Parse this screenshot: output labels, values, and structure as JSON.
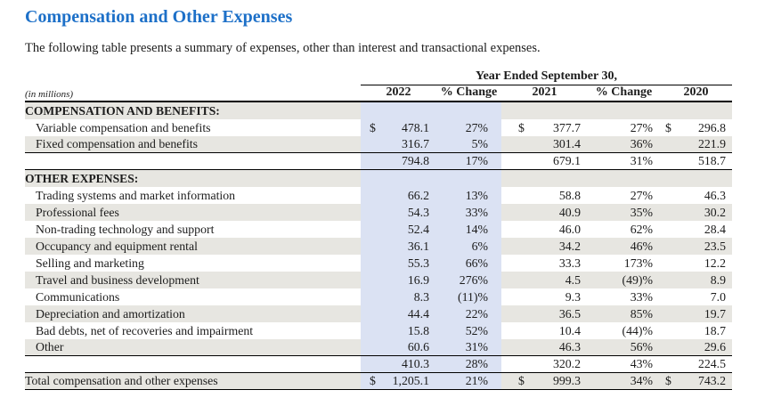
{
  "page": {
    "title": "Compensation and Other Expenses",
    "subtitle": "The following table presents a summary of expenses, other than interest and transactional expenses."
  },
  "table": {
    "group_header": "Year Ended September 30,",
    "unit_label": "(in millions)",
    "columns": [
      "2022",
      "% Change",
      "2021",
      "% Change",
      "2020"
    ],
    "currency_symbol": "$",
    "colors": {
      "title_accent": "#1d70c8",
      "column_highlight": "#dbe2f3",
      "row_stripe": "#e7e6e1"
    },
    "rows": [
      {
        "label": "COMPENSATION AND BENEFITS:",
        "style": "section",
        "stripe": true,
        "dollar": false,
        "rule_below": false,
        "values": [
          "",
          "",
          "",
          "",
          ""
        ]
      },
      {
        "label": "Variable compensation and benefits",
        "style": "item",
        "stripe": false,
        "dollar": true,
        "rule_below": false,
        "values": [
          "478.1",
          "27%",
          "377.7",
          "27%",
          "296.8"
        ]
      },
      {
        "label": "Fixed compensation and benefits",
        "style": "item",
        "stripe": true,
        "dollar": false,
        "rule_below": true,
        "values": [
          "316.7",
          "5%",
          "301.4",
          "36%",
          "221.9"
        ]
      },
      {
        "label": "",
        "style": "subtotal",
        "stripe": false,
        "dollar": false,
        "rule_below": true,
        "values": [
          "794.8",
          "17%",
          "679.1",
          "31%",
          "518.7"
        ]
      },
      {
        "label": "OTHER EXPENSES:",
        "style": "section",
        "stripe": true,
        "dollar": false,
        "rule_below": false,
        "values": [
          "",
          "",
          "",
          "",
          ""
        ]
      },
      {
        "label": "Trading systems and market information",
        "style": "item",
        "stripe": false,
        "dollar": false,
        "rule_below": false,
        "values": [
          "66.2",
          "13%",
          "58.8",
          "27%",
          "46.3"
        ]
      },
      {
        "label": "Professional fees",
        "style": "item",
        "stripe": true,
        "dollar": false,
        "rule_below": false,
        "values": [
          "54.3",
          "33%",
          "40.9",
          "35%",
          "30.2"
        ]
      },
      {
        "label": "Non-trading technology and support",
        "style": "item",
        "stripe": false,
        "dollar": false,
        "rule_below": false,
        "values": [
          "52.4",
          "14%",
          "46.0",
          "62%",
          "28.4"
        ]
      },
      {
        "label": "Occupancy and equipment rental",
        "style": "item",
        "stripe": true,
        "dollar": false,
        "rule_below": false,
        "values": [
          "36.1",
          "6%",
          "34.2",
          "46%",
          "23.5"
        ]
      },
      {
        "label": "Selling and marketing",
        "style": "item",
        "stripe": false,
        "dollar": false,
        "rule_below": false,
        "values": [
          "55.3",
          "66%",
          "33.3",
          "173%",
          "12.2"
        ]
      },
      {
        "label": "Travel and business development",
        "style": "item",
        "stripe": true,
        "dollar": false,
        "rule_below": false,
        "values": [
          "16.9",
          "276%",
          "4.5",
          "(49)%",
          "8.9"
        ]
      },
      {
        "label": "Communications",
        "style": "item",
        "stripe": false,
        "dollar": false,
        "rule_below": false,
        "values": [
          "8.3",
          "(11)%",
          "9.3",
          "33%",
          "7.0"
        ]
      },
      {
        "label": "Depreciation and amortization",
        "style": "item",
        "stripe": true,
        "dollar": false,
        "rule_below": false,
        "values": [
          "44.4",
          "22%",
          "36.5",
          "85%",
          "19.7"
        ]
      },
      {
        "label": "Bad debts, net of recoveries and impairment",
        "style": "item",
        "stripe": false,
        "dollar": false,
        "rule_below": false,
        "values": [
          "15.8",
          "52%",
          "10.4",
          "(44)%",
          "18.7"
        ]
      },
      {
        "label": "Other",
        "style": "item",
        "stripe": true,
        "dollar": false,
        "rule_below": true,
        "values": [
          "60.6",
          "31%",
          "46.3",
          "56%",
          "29.6"
        ]
      },
      {
        "label": "",
        "style": "subtotal",
        "stripe": false,
        "dollar": false,
        "rule_below": true,
        "values": [
          "410.3",
          "28%",
          "320.2",
          "43%",
          "224.5"
        ]
      },
      {
        "label": "Total compensation and other expenses",
        "style": "total",
        "stripe": true,
        "dollar": true,
        "rule_below": true,
        "values": [
          "1,205.1",
          "21%",
          "999.3",
          "34%",
          "743.2"
        ]
      }
    ]
  }
}
